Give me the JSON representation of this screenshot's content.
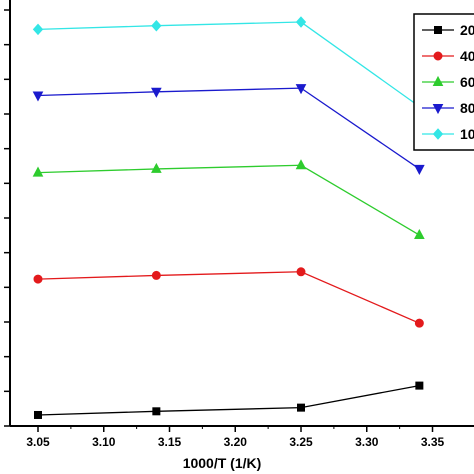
{
  "chart_data": {
    "type": "line",
    "xlabel": "1000/T (1/K)",
    "ylabel": "",
    "title": "",
    "x": [
      3.05,
      3.14,
      3.25,
      3.34
    ],
    "xlim": [
      3.05,
      3.36
    ],
    "xticks": [
      3.05,
      3.1,
      3.15,
      3.2,
      3.25,
      3.3,
      3.35
    ],
    "xtick_labels": [
      "3.05",
      "3.10",
      "3.15",
      "3.20",
      "3.25",
      "3.30",
      "3.35"
    ],
    "ylim": [
      0,
      11.6
    ],
    "y_tick_count": 12,
    "grid": false,
    "legend_position": "top-right",
    "series": [
      {
        "name": "20",
        "marker": "square",
        "color": "#000000",
        "values": [
          0.3,
          0.4,
          0.5,
          1.1
        ]
      },
      {
        "name": "40",
        "marker": "circle",
        "color": "#e31a1c",
        "values": [
          4.0,
          4.1,
          4.2,
          2.8
        ]
      },
      {
        "name": "60",
        "marker": "triangle-up",
        "color": "#2ecc2e",
        "values": [
          6.9,
          7.0,
          7.1,
          5.2
        ]
      },
      {
        "name": "80",
        "marker": "triangle-down",
        "color": "#1a1acd",
        "values": [
          9.0,
          9.1,
          9.2,
          7.0
        ]
      },
      {
        "name": "10",
        "marker": "diamond",
        "color": "#33e6e6",
        "values": [
          10.8,
          10.9,
          11.0,
          8.7
        ]
      }
    ]
  }
}
